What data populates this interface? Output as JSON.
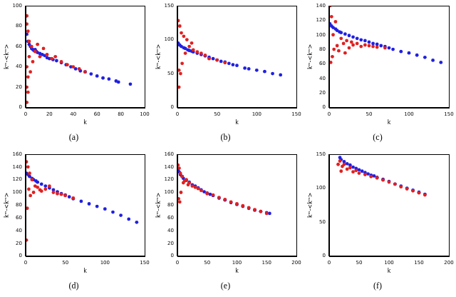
{
  "chart_data": [
    {
      "type": "scatter",
      "title": "(a)",
      "x_label": "k",
      "y_label": "kᵐ-<kᵐ>",
      "grid": false,
      "xlim": [
        0,
        100
      ],
      "xticks": [
        0,
        20,
        40,
        60,
        80,
        100
      ],
      "ylim": [
        0,
        100
      ],
      "yticks": [
        0,
        20,
        40,
        60,
        80,
        100
      ],
      "series": [
        {
          "color": "#e02020",
          "x": [
            1,
            1,
            1,
            1,
            1,
            2,
            2,
            2,
            3,
            3,
            4,
            5,
            6,
            8,
            10,
            12,
            15,
            18,
            22,
            25,
            30,
            35,
            40,
            45,
            50
          ],
          "y": [
            90,
            82,
            20,
            5,
            40,
            75,
            30,
            15,
            50,
            65,
            35,
            60,
            45,
            55,
            62,
            50,
            58,
            52,
            48,
            50,
            45,
            42,
            40,
            38,
            35
          ]
        },
        {
          "color": "#2020e0",
          "x": [
            1,
            2,
            3,
            4,
            5,
            6,
            7,
            8,
            9,
            10,
            12,
            14,
            16,
            18,
            20,
            23,
            26,
            30,
            34,
            38,
            42,
            46,
            50,
            55,
            60,
            65,
            70,
            76,
            78,
            88
          ],
          "y": [
            72,
            65,
            62,
            60,
            58,
            57,
            56,
            57,
            55,
            54,
            53,
            52,
            51,
            49,
            48,
            47,
            46,
            44,
            42,
            40,
            38,
            36,
            35,
            33,
            31,
            29,
            28,
            26,
            25,
            23
          ]
        }
      ]
    },
    {
      "type": "scatter",
      "title": "(b)",
      "x_label": "k",
      "y_label": "kᵐ-<kᵐ>",
      "grid": false,
      "xlim": [
        0,
        150
      ],
      "xticks": [
        0,
        50,
        100,
        150
      ],
      "ylim": [
        0,
        150
      ],
      "yticks": [
        0,
        50,
        100,
        150
      ],
      "series": [
        {
          "color": "#e02020",
          "x": [
            1,
            2,
            2,
            3,
            4,
            5,
            6,
            8,
            10,
            12,
            15,
            18,
            20,
            25,
            30,
            35,
            40,
            50,
            60
          ],
          "y": [
            128,
            30,
            55,
            120,
            50,
            110,
            65,
            105,
            80,
            100,
            90,
            95,
            85,
            82,
            80,
            77,
            72,
            70,
            66
          ]
        },
        {
          "color": "#2020e0",
          "x": [
            1,
            3,
            5,
            8,
            10,
            13,
            15,
            18,
            20,
            25,
            30,
            35,
            40,
            45,
            50,
            55,
            60,
            65,
            70,
            75,
            85,
            90,
            100,
            110,
            120,
            130
          ],
          "y": [
            95,
            92,
            90,
            88,
            87,
            85,
            84,
            83,
            82,
            80,
            78,
            76,
            74,
            72,
            70,
            68,
            67,
            65,
            63,
            62,
            58,
            57,
            55,
            53,
            50,
            48
          ]
        }
      ]
    },
    {
      "type": "scatter",
      "title": "(c)",
      "x_label": "k",
      "y_label": "kᵐ-<kᵐ>",
      "grid": false,
      "xlim": [
        0,
        150
      ],
      "xticks": [
        0,
        50,
        100,
        150
      ],
      "ylim": [
        0,
        140
      ],
      "yticks": [
        0,
        20,
        40,
        60,
        80,
        100,
        120,
        140
      ],
      "series": [
        {
          "color": "#e02020",
          "x": [
            1,
            2,
            3,
            4,
            5,
            6,
            8,
            10,
            12,
            15,
            18,
            20,
            22,
            25,
            28,
            30,
            35,
            40,
            45,
            50,
            55,
            60,
            70
          ],
          "y": [
            140,
            62,
            125,
            70,
            100,
            80,
            118,
            85,
            78,
            95,
            88,
            75,
            92,
            82,
            90,
            86,
            88,
            84,
            86,
            85,
            84,
            83,
            82
          ]
        },
        {
          "color": "#2020e0",
          "x": [
            1,
            3,
            5,
            8,
            10,
            13,
            15,
            20,
            25,
            30,
            35,
            40,
            45,
            50,
            55,
            60,
            65,
            70,
            75,
            80,
            90,
            100,
            110,
            120,
            130,
            140
          ],
          "y": [
            115,
            112,
            110,
            108,
            106,
            104,
            103,
            101,
            99,
            97,
            95,
            93,
            92,
            90,
            88,
            87,
            85,
            84,
            82,
            80,
            77,
            75,
            72,
            69,
            65,
            62
          ]
        }
      ]
    },
    {
      "type": "scatter",
      "title": "(d)",
      "x_label": "k",
      "y_label": "kᵐ-<kᵐ>",
      "grid": false,
      "xlim": [
        0,
        150
      ],
      "xticks": [
        0,
        50,
        100,
        150
      ],
      "ylim": [
        0,
        160
      ],
      "yticks": [
        0,
        20,
        40,
        60,
        80,
        100,
        120,
        140,
        160
      ],
      "series": [
        {
          "color": "#e02020",
          "x": [
            1,
            1,
            2,
            3,
            4,
            5,
            6,
            8,
            10,
            12,
            15,
            18,
            20,
            25,
            30,
            35,
            40,
            45,
            50,
            60
          ],
          "y": [
            148,
            25,
            75,
            140,
            105,
            130,
            95,
            120,
            100,
            110,
            108,
            104,
            102,
            105,
            110,
            100,
            98,
            97,
            95,
            91
          ]
        },
        {
          "color": "#2020e0",
          "x": [
            1,
            3,
            5,
            8,
            10,
            13,
            15,
            20,
            25,
            30,
            35,
            40,
            45,
            50,
            55,
            60,
            70,
            80,
            90,
            100,
            110,
            120,
            130,
            140
          ],
          "y": [
            130,
            128,
            125,
            122,
            120,
            118,
            116,
            113,
            110,
            107,
            104,
            101,
            98,
            96,
            93,
            90,
            86,
            82,
            78,
            74,
            69,
            64,
            58,
            53
          ]
        }
      ]
    },
    {
      "type": "scatter",
      "title": "(e)",
      "x_label": "k",
      "y_label": "kᵐ-<kᵐ>",
      "grid": false,
      "xlim": [
        0,
        200
      ],
      "xticks": [
        0,
        50,
        100,
        150,
        200
      ],
      "ylim": [
        0,
        160
      ],
      "yticks": [
        0,
        20,
        40,
        60,
        80,
        100,
        120,
        140,
        160
      ],
      "series": [
        {
          "color": "#e02020",
          "x": [
            1,
            2,
            3,
            4,
            5,
            6,
            8,
            10,
            12,
            15,
            18,
            20,
            25,
            30,
            35,
            40,
            50,
            60,
            70,
            80,
            90,
            100,
            110,
            120,
            130,
            140,
            150
          ],
          "y": [
            143,
            90,
            138,
            85,
            130,
            100,
            125,
            115,
            118,
            120,
            112,
            115,
            110,
            108,
            106,
            103,
            98,
            96,
            92,
            89,
            85,
            82,
            79,
            76,
            73,
            70,
            67
          ]
        },
        {
          "color": "#2020e0",
          "x": [
            1,
            3,
            5,
            8,
            10,
            15,
            20,
            25,
            30,
            35,
            40,
            45,
            50,
            55,
            60,
            70,
            80,
            90,
            100,
            110,
            120,
            130,
            140,
            150,
            155
          ],
          "y": [
            135,
            132,
            128,
            125,
            122,
            119,
            116,
            112,
            110,
            107,
            104,
            101,
            99,
            97,
            95,
            91,
            88,
            84,
            81,
            78,
            75,
            72,
            70,
            68,
            67
          ]
        }
      ]
    },
    {
      "type": "scatter",
      "title": "(f)",
      "x_label": "k",
      "y_label": "kᵐ-<kᵐ>",
      "grid": false,
      "xlim": [
        0,
        200
      ],
      "xticks": [
        0,
        50,
        100,
        150,
        200
      ],
      "ylim": [
        0,
        150
      ],
      "yticks": [
        0,
        50,
        100,
        150
      ],
      "series": [
        {
          "color": "#e02020",
          "x": [
            15,
            18,
            20,
            22,
            25,
            30,
            35,
            40,
            45,
            50,
            60,
            70,
            80,
            90,
            100,
            110,
            120,
            130,
            140,
            150,
            160
          ],
          "y": [
            135,
            140,
            125,
            132,
            135,
            128,
            130,
            124,
            126,
            122,
            120,
            117,
            115,
            112,
            109,
            106,
            102,
            99,
            96,
            93,
            90
          ]
        },
        {
          "color": "#2020e0",
          "x": [
            18,
            20,
            25,
            30,
            35,
            40,
            45,
            50,
            55,
            60,
            65,
            70,
            75,
            80,
            90,
            100,
            110,
            120,
            130,
            140,
            150,
            160
          ],
          "y": [
            145,
            142,
            139,
            136,
            134,
            131,
            129,
            127,
            125,
            123,
            121,
            119,
            118,
            116,
            113,
            110,
            106,
            103,
            100,
            97,
            94,
            91
          ]
        }
      ]
    }
  ]
}
